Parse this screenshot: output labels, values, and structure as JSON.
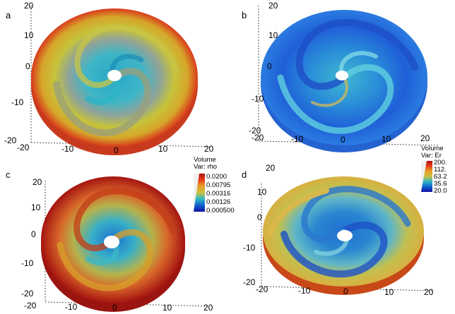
{
  "panels": [
    {
      "label": "a",
      "y_ticks": [
        "20",
        "10",
        "0",
        "-10",
        "-20"
      ],
      "x_ticks": [
        "-20",
        "-10",
        "0",
        "10",
        "20"
      ]
    },
    {
      "label": "b",
      "y_ticks": [
        "20",
        "10",
        "0",
        "-10",
        "-20"
      ],
      "x_ticks": [
        "-20",
        "-10",
        "0",
        "10",
        "20"
      ]
    },
    {
      "label": "c",
      "y_ticks": [
        "20",
        "10",
        "0",
        "-10",
        "-20"
      ],
      "x_ticks": [
        "-20",
        "-10",
        "0",
        "10",
        "20"
      ],
      "legend": {
        "title": "Volume",
        "var": "Var: rho",
        "levels": [
          "0.0200",
          "0.00795",
          "0.00316",
          "0.00126",
          "0.000500"
        ]
      }
    },
    {
      "label": "d",
      "y_ticks": [
        "20",
        "10",
        "0",
        "-10",
        "-20"
      ],
      "x_ticks": [
        "-20",
        "-10",
        "0",
        "10",
        "20"
      ],
      "legend": {
        "title": "Volume",
        "var": "Var: Er",
        "levels": [
          "200.",
          "112.",
          "63.2",
          "35.6",
          "20.0"
        ]
      }
    }
  ]
}
